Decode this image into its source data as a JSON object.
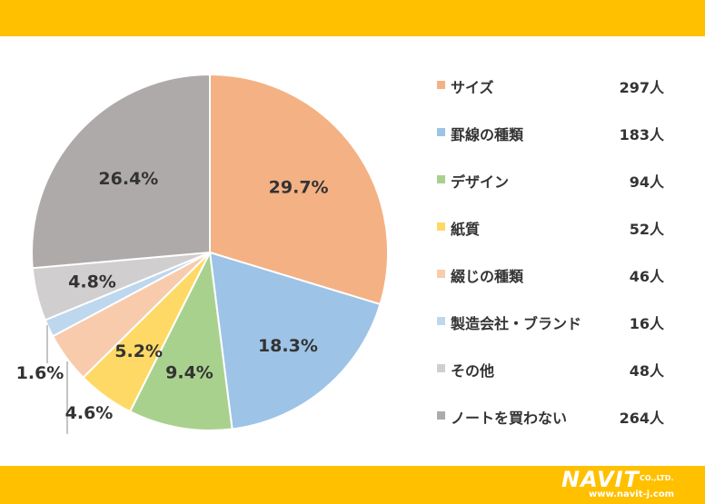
{
  "colors": {
    "band": "#FFC000",
    "label_text": "#333333"
  },
  "chart_data": {
    "type": "pie",
    "slices": [
      {
        "label": "サイズ",
        "count": "297人",
        "value": 29.7,
        "pct_label": "29.7%",
        "color": "#F4B183"
      },
      {
        "label": "罫線の種類",
        "count": "183人",
        "value": 18.3,
        "pct_label": "18.3%",
        "color": "#9DC3E6"
      },
      {
        "label": "デザイン",
        "count": "94人",
        "value": 9.4,
        "pct_label": "9.4%",
        "color": "#A9D18E"
      },
      {
        "label": "紙質",
        "count": "52人",
        "value": 5.2,
        "pct_label": "5.2%",
        "color": "#FFD966"
      },
      {
        "label": "綴じの種類",
        "count": "46人",
        "value": 4.6,
        "pct_label": "4.6%",
        "color": "#F8CBAD"
      },
      {
        "label": "製造会社・ブランド",
        "count": "16人",
        "value": 1.6,
        "pct_label": "1.6%",
        "color": "#BDD7EE"
      },
      {
        "label": "その他",
        "count": "48人",
        "value": 4.8,
        "pct_label": "4.8%",
        "color": "#D0CECE"
      },
      {
        "label": "ノートを買わない",
        "count": "264人",
        "value": 26.4,
        "pct_label": "26.4%",
        "color": "#AEAAAA"
      }
    ],
    "legend_position": "right"
  },
  "logo": {
    "main": "NAVIT",
    "suffix": "CO.,LTD.",
    "url": "www.navit-j.com"
  }
}
